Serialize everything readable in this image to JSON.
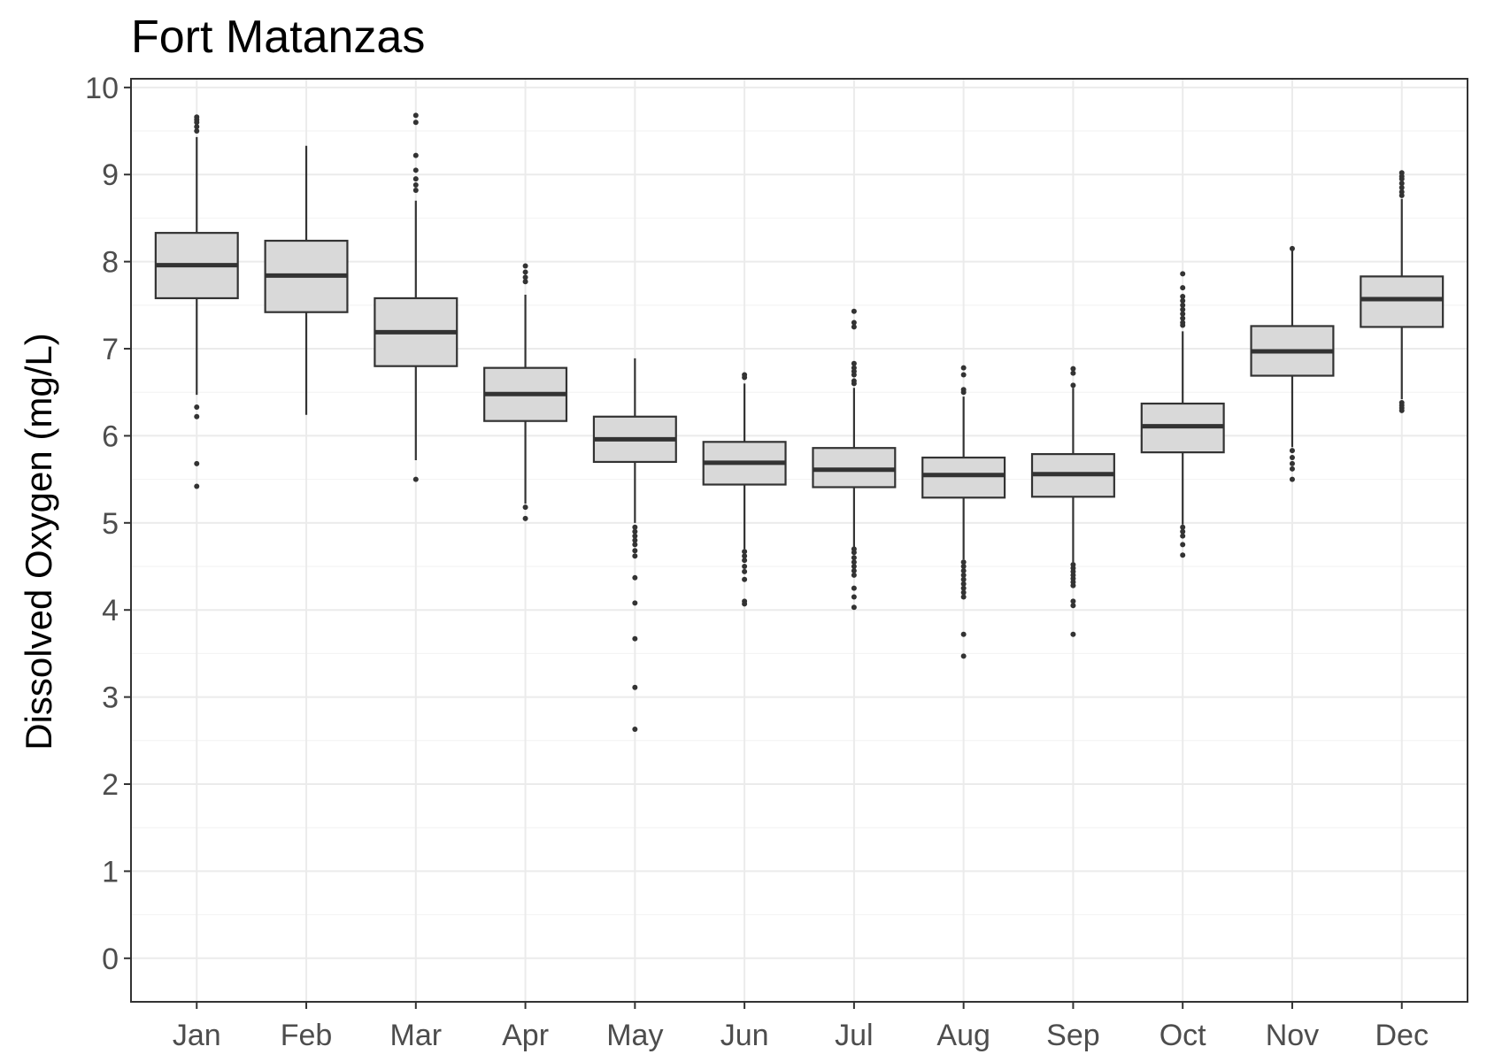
{
  "chart_data": {
    "type": "box",
    "title": "Fort Matanzas",
    "xlabel": "",
    "ylabel": "Dissolved Oxygen (mg/L)",
    "ylim": [
      -0.5,
      10.1
    ],
    "yticks": [
      0,
      1,
      2,
      3,
      4,
      5,
      6,
      7,
      8,
      9,
      10
    ],
    "grid": true,
    "legend": "none",
    "categories": [
      "Jan",
      "Feb",
      "Mar",
      "Apr",
      "May",
      "Jun",
      "Jul",
      "Aug",
      "Sep",
      "Oct",
      "Nov",
      "Dec"
    ],
    "boxes": [
      {
        "month": "Jan",
        "whisker_low": 6.47,
        "q1": 7.58,
        "median": 7.96,
        "q3": 8.33,
        "whisker_high": 9.43,
        "outliers": [
          9.66,
          9.63,
          9.6,
          9.55,
          9.5,
          6.33,
          6.22,
          5.68,
          5.42
        ]
      },
      {
        "month": "Feb",
        "whisker_low": 6.24,
        "q1": 7.42,
        "median": 7.84,
        "q3": 8.24,
        "whisker_high": 9.33,
        "outliers": []
      },
      {
        "month": "Mar",
        "whisker_low": 5.72,
        "q1": 6.8,
        "median": 7.19,
        "q3": 7.58,
        "whisker_high": 8.7,
        "outliers": [
          9.68,
          9.6,
          9.22,
          9.05,
          8.95,
          8.88,
          8.82,
          5.5
        ]
      },
      {
        "month": "Apr",
        "whisker_low": 5.22,
        "q1": 6.17,
        "median": 6.48,
        "q3": 6.78,
        "whisker_high": 7.62,
        "outliers": [
          7.95,
          7.88,
          7.82,
          7.77,
          5.18,
          5.05
        ]
      },
      {
        "month": "May",
        "whisker_low": 5.0,
        "q1": 5.7,
        "median": 5.96,
        "q3": 6.22,
        "whisker_high": 6.89,
        "outliers": [
          4.95,
          4.9,
          4.85,
          4.8,
          4.75,
          4.68,
          4.62,
          4.37,
          4.08,
          3.67,
          3.11,
          2.63
        ]
      },
      {
        "month": "Jun",
        "whisker_low": 4.7,
        "q1": 5.44,
        "median": 5.69,
        "q3": 5.93,
        "whisker_high": 6.6,
        "outliers": [
          6.7,
          6.67,
          4.67,
          4.62,
          4.57,
          4.5,
          4.44,
          4.35,
          4.1,
          4.07
        ]
      },
      {
        "month": "Jul",
        "whisker_low": 4.72,
        "q1": 5.41,
        "median": 5.61,
        "q3": 5.86,
        "whisker_high": 6.55,
        "outliers": [
          7.43,
          7.3,
          7.25,
          6.83,
          6.78,
          6.74,
          6.7,
          6.63,
          6.6,
          4.7,
          4.66,
          4.6,
          4.55,
          4.5,
          4.45,
          4.4,
          4.25,
          4.15,
          4.03
        ]
      },
      {
        "month": "Aug",
        "whisker_low": 4.58,
        "q1": 5.29,
        "median": 5.55,
        "q3": 5.75,
        "whisker_high": 6.45,
        "outliers": [
          6.78,
          6.7,
          6.53,
          6.5,
          4.55,
          4.5,
          4.45,
          4.4,
          4.35,
          4.3,
          4.25,
          4.2,
          4.15,
          3.72,
          3.47
        ]
      },
      {
        "month": "Sep",
        "whisker_low": 4.55,
        "q1": 5.3,
        "median": 5.56,
        "q3": 5.79,
        "whisker_high": 6.55,
        "outliers": [
          6.77,
          6.72,
          6.58,
          4.52,
          4.48,
          4.44,
          4.4,
          4.36,
          4.32,
          4.28,
          4.1,
          4.05,
          3.72
        ]
      },
      {
        "month": "Oct",
        "whisker_low": 4.98,
        "q1": 5.81,
        "median": 6.11,
        "q3": 6.37,
        "whisker_high": 7.2,
        "outliers": [
          7.86,
          7.7,
          7.6,
          7.55,
          7.5,
          7.45,
          7.4,
          7.35,
          7.3,
          7.27,
          4.95,
          4.9,
          4.85,
          4.75,
          4.63
        ]
      },
      {
        "month": "Nov",
        "whisker_low": 5.87,
        "q1": 6.69,
        "median": 6.97,
        "q3": 7.26,
        "whisker_high": 8.14,
        "outliers": [
          8.15,
          5.83,
          5.75,
          5.68,
          5.62,
          5.5
        ]
      },
      {
        "month": "Dec",
        "whisker_low": 6.42,
        "q1": 7.25,
        "median": 7.57,
        "q3": 7.83,
        "whisker_high": 8.72,
        "outliers": [
          9.02,
          8.98,
          8.95,
          8.9,
          8.85,
          8.8,
          8.76,
          6.38,
          6.35,
          6.32,
          6.29
        ]
      }
    ]
  }
}
